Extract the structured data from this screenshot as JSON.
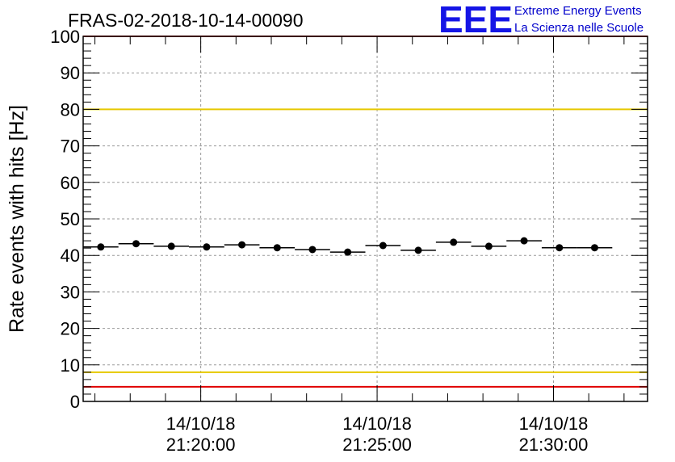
{
  "chart_data": {
    "type": "scatter",
    "title": "FRAS-02-2018-10-14-00090",
    "ylabel": "Rate events with hits [Hz]",
    "xlabel": "",
    "ylim": [
      0,
      100
    ],
    "xlim": [
      "21:16:40",
      "21:32:40"
    ],
    "yticks": [
      0,
      10,
      20,
      30,
      40,
      50,
      60,
      70,
      80,
      90,
      100
    ],
    "xticks": [
      {
        "time": "21:20:00",
        "date": "14/10/18",
        "time_label": "21:20:00"
      },
      {
        "time": "21:25:00",
        "date": "14/10/18",
        "time_label": "21:25:00"
      },
      {
        "time": "21:30:00",
        "date": "14/10/18",
        "time_label": "21:30:00"
      }
    ],
    "grid": true,
    "bin_width_seconds": 60,
    "points": [
      {
        "x": "21:17:10",
        "y": 42.3
      },
      {
        "x": "21:18:10",
        "y": 43.2
      },
      {
        "x": "21:19:10",
        "y": 42.5
      },
      {
        "x": "21:20:10",
        "y": 42.3
      },
      {
        "x": "21:21:10",
        "y": 42.9
      },
      {
        "x": "21:22:10",
        "y": 42.1
      },
      {
        "x": "21:23:10",
        "y": 41.6
      },
      {
        "x": "21:24:10",
        "y": 40.9
      },
      {
        "x": "21:25:10",
        "y": 42.7
      },
      {
        "x": "21:26:10",
        "y": 41.4
      },
      {
        "x": "21:27:10",
        "y": 43.6
      },
      {
        "x": "21:28:10",
        "y": 42.5
      },
      {
        "x": "21:29:10",
        "y": 44.0
      },
      {
        "x": "21:30:10",
        "y": 42.1
      },
      {
        "x": "21:31:10",
        "y": 42.1
      }
    ],
    "reference_lines": [
      {
        "y": 100,
        "color": "#e00000"
      },
      {
        "y": 80,
        "color": "#e6c800"
      },
      {
        "y": 8,
        "color": "#e6c800"
      },
      {
        "y": 4,
        "color": "#e00000"
      }
    ]
  },
  "logo": {
    "mark": "EEE",
    "line1": "Extreme Energy Events",
    "line2": "La Scienza nelle Scuole",
    "color": "#1515e6"
  }
}
